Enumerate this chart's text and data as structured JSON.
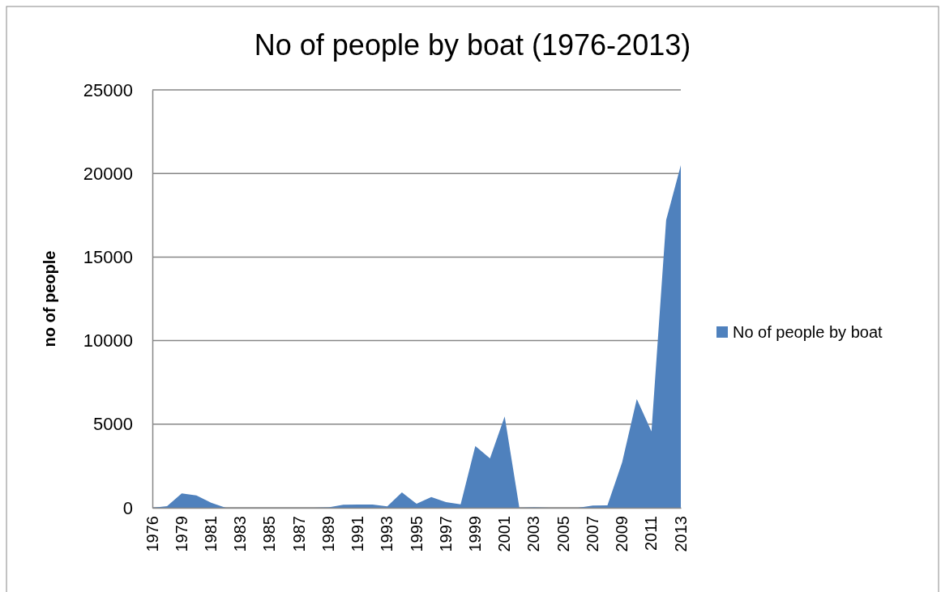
{
  "chart_data": {
    "type": "area",
    "title": "No of people by boat (1976-2013)",
    "ylabel": "no of people",
    "categories": [
      "1976",
      null,
      "1979",
      null,
      "1981",
      null,
      "1983",
      null,
      "1985",
      null,
      "1987",
      null,
      "1989",
      null,
      "1991",
      null,
      "1993",
      null,
      "1995",
      null,
      "1997",
      null,
      "1999",
      null,
      "2001",
      null,
      "2003",
      null,
      "2005",
      null,
      "2007",
      null,
      "2009",
      null,
      "2011",
      null,
      "2013"
    ],
    "series": [
      {
        "name": "No of people by boat",
        "color": "#4f81bd",
        "values": [
          0,
          100,
          860,
          740,
          300,
          0,
          0,
          0,
          0,
          0,
          0,
          0,
          30,
          180,
          190,
          190,
          80,
          920,
          240,
          640,
          340,
          210,
          3700,
          2950,
          5460,
          0,
          30,
          0,
          0,
          0,
          130,
          140,
          2710,
          6510,
          4570,
          17210,
          20490
        ]
      }
    ],
    "ylim": [
      0,
      25000
    ],
    "yticks": [
      0,
      5000,
      10000,
      15000,
      20000,
      25000
    ],
    "grid": "y",
    "legend": "right"
  }
}
